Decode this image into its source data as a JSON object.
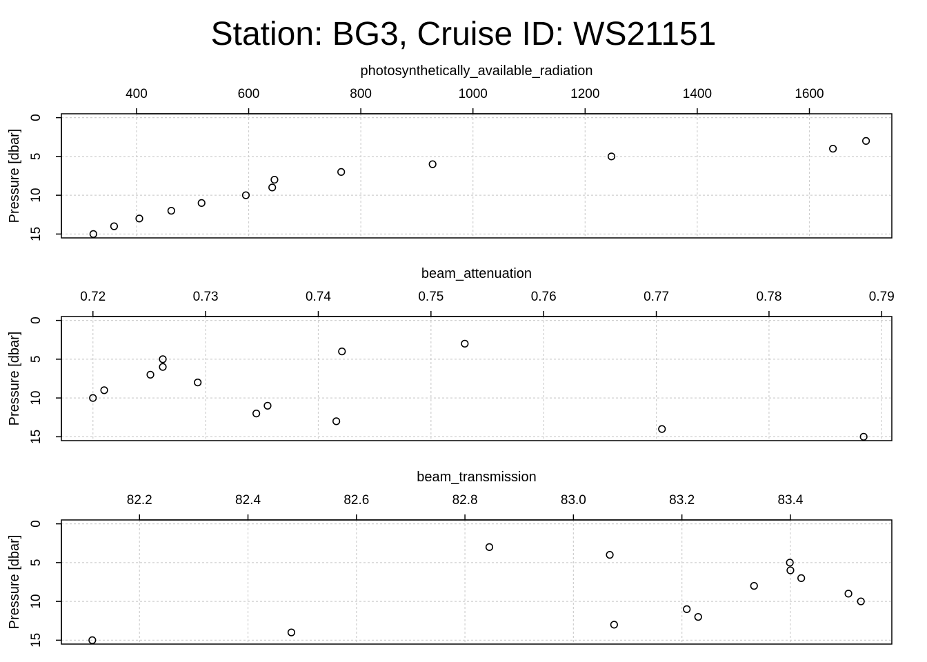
{
  "title": "Station: BG3, Cruise ID: WS21151",
  "chart_data": [
    {
      "type": "scatter",
      "title": "photosynthetically_available_radiation",
      "xlabel": "photosynthetically_available_radiation",
      "ylabel": "Pressure [dbar]",
      "xlim": [
        266,
        1747
      ],
      "ylim": [
        15.5,
        -0.5
      ],
      "y_reversed": true,
      "x_axis_position": "top",
      "xticks": [
        400,
        600,
        800,
        1000,
        1200,
        1400,
        1600
      ],
      "yticks": [
        0,
        5,
        10,
        15
      ],
      "grid": true,
      "x": [
        1701,
        1642,
        1247,
        928,
        765,
        646,
        642,
        595,
        516,
        462,
        405,
        360,
        323
      ],
      "y": [
        3,
        4,
        5,
        6,
        7,
        8,
        9,
        10,
        11,
        12,
        13,
        14,
        15
      ]
    },
    {
      "type": "scatter",
      "title": "beam_attenuation",
      "xlabel": "beam_attenuation",
      "ylabel": "Pressure [dbar]",
      "xlim": [
        0.7172,
        0.7909
      ],
      "ylim": [
        15.5,
        -0.5
      ],
      "y_reversed": true,
      "x_axis_position": "top",
      "xticks": [
        0.72,
        0.73,
        0.74,
        0.75,
        0.76,
        0.77,
        0.78,
        0.79
      ],
      "yticks": [
        0,
        5,
        10,
        15
      ],
      "grid": true,
      "x": [
        0.753,
        0.7421,
        0.7262,
        0.7262,
        0.7251,
        0.7293,
        0.721,
        0.72,
        0.7355,
        0.7345,
        0.7416,
        0.7705,
        0.7884
      ],
      "y": [
        3,
        4,
        5,
        6,
        7,
        8,
        9,
        10,
        11,
        12,
        13,
        14,
        15
      ]
    },
    {
      "type": "scatter",
      "title": "beam_transmission",
      "xlabel": "beam_transmission",
      "ylabel": "Pressure [dbar]",
      "xlim": [
        82.056,
        83.587
      ],
      "ylim": [
        15.5,
        -0.5
      ],
      "y_reversed": true,
      "x_axis_position": "top",
      "xticks": [
        "82.2",
        "82.4",
        "82.6",
        "82.8",
        "83.0",
        "83.2",
        "83.4"
      ],
      "yticks": [
        0,
        5,
        10,
        15
      ],
      "grid": true,
      "x": [
        82.845,
        83.067,
        83.399,
        83.4,
        83.42,
        83.333,
        83.507,
        83.53,
        83.209,
        83.23,
        83.075,
        82.48,
        82.113
      ],
      "y": [
        3,
        4,
        5,
        6,
        7,
        8,
        9,
        10,
        11,
        12,
        13,
        14,
        15
      ]
    }
  ]
}
